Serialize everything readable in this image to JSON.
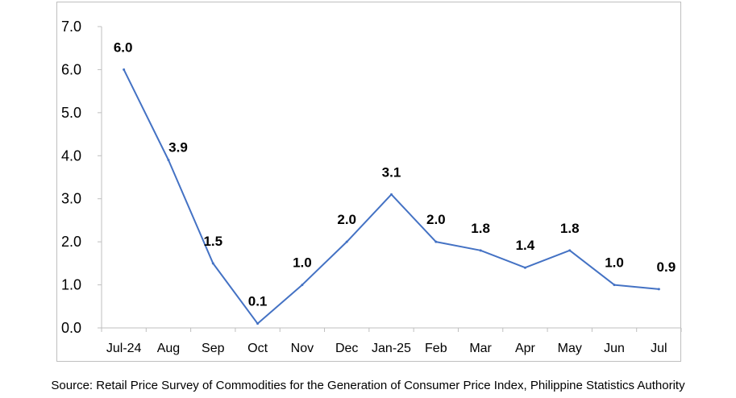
{
  "chart_data": {
    "type": "line",
    "title": "",
    "xlabel": "",
    "ylabel": "",
    "categories": [
      "Jul-24",
      "Aug",
      "Sep",
      "Oct",
      "Nov",
      "Dec",
      "Jan-25",
      "Feb",
      "Mar",
      "Apr",
      "May",
      "Jun",
      "Jul"
    ],
    "series": [
      {
        "values": [
          6.0,
          3.9,
          1.5,
          0.1,
          1.0,
          2.0,
          3.1,
          2.0,
          1.8,
          1.4,
          1.8,
          1.0,
          0.9
        ],
        "data_labels": [
          "6.0",
          "3.9",
          "1.5",
          "0.1",
          "1.0",
          "2.0",
          "3.1",
          "2.0",
          "1.8",
          "1.4",
          "1.8",
          "1.0",
          "0.9"
        ],
        "color": "#4472c4"
      }
    ],
    "ylim": [
      0,
      7
    ],
    "yticks": [
      "0.0",
      "1.0",
      "2.0",
      "3.0",
      "4.0",
      "5.0",
      "6.0",
      "7.0"
    ],
    "grid": false,
    "legend": "none"
  },
  "source": "Source: Retail Price Survey of Commodities for the Generation of Consumer Price Index, Philippine Statistics Authority"
}
